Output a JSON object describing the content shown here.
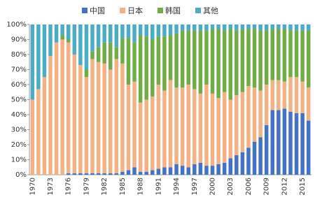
{
  "chart_data": {
    "type": "stacked_bar_percent",
    "categories": [
      "1970",
      null,
      null,
      "1973",
      null,
      null,
      "1976",
      null,
      null,
      "1979",
      null,
      null,
      "1982",
      null,
      null,
      "1985",
      null,
      null,
      "1988",
      null,
      null,
      "1991",
      null,
      null,
      "1994",
      null,
      null,
      "1997",
      null,
      null,
      "2000",
      null,
      null,
      "2003",
      null,
      null,
      "2006",
      null,
      null,
      "2009",
      null,
      null,
      "2012",
      null,
      null,
      "2015",
      null
    ],
    "series": [
      {
        "name": "中国",
        "color": "#4472c4",
        "values": [
          0,
          0,
          0,
          0,
          0,
          0,
          1,
          1,
          1,
          1,
          1,
          1,
          1,
          1,
          1,
          2,
          3,
          5,
          2,
          2,
          3,
          4,
          5,
          5,
          7,
          6,
          5,
          7,
          8,
          6,
          6,
          7,
          8,
          11,
          13,
          15,
          18,
          22,
          25,
          33,
          43,
          43,
          44,
          42,
          41,
          41,
          36
        ]
      },
      {
        "name": "日本",
        "color": "#f4b183",
        "values": [
          50,
          57,
          65,
          79,
          88,
          90,
          87,
          79,
          72,
          64,
          76,
          74,
          73,
          69,
          76,
          72,
          57,
          57,
          46,
          48,
          49,
          56,
          51,
          58,
          51,
          52,
          55,
          50,
          46,
          54,
          48,
          44,
          47,
          39,
          40,
          40,
          41,
          36,
          31,
          27,
          20,
          20,
          18,
          23,
          24,
          21,
          22
        ]
      },
      {
        "name": "韩国",
        "color": "#70ad47",
        "values": [
          0,
          0,
          0,
          0,
          0,
          3,
          2,
          0,
          0,
          5,
          5,
          10,
          14,
          18,
          8,
          17,
          31,
          26,
          45,
          42,
          38,
          32,
          36,
          30,
          36,
          38,
          36,
          39,
          42,
          36,
          43,
          46,
          41,
          47,
          43,
          42,
          38,
          39,
          40,
          36,
          34,
          34,
          35,
          31,
          31,
          34,
          38
        ]
      },
      {
        "name": "其他",
        "color": "#4bacc6",
        "values": [
          50,
          43,
          35,
          21,
          12,
          7,
          10,
          20,
          27,
          30,
          18,
          15,
          12,
          12,
          15,
          9,
          9,
          12,
          7,
          8,
          10,
          8,
          8,
          7,
          6,
          4,
          4,
          4,
          4,
          4,
          3,
          3,
          4,
          3,
          4,
          3,
          3,
          3,
          4,
          4,
          3,
          3,
          3,
          4,
          4,
          4,
          4
        ]
      }
    ],
    "ylim": [
      0,
      100
    ],
    "yticks": [
      {
        "value": 0,
        "label": "0%"
      },
      {
        "value": 10,
        "label": "10%"
      },
      {
        "value": 20,
        "label": "20%"
      },
      {
        "value": 30,
        "label": "30%"
      },
      {
        "value": 40,
        "label": "40%"
      },
      {
        "value": 50,
        "label": "50%"
      },
      {
        "value": 60,
        "label": "60%"
      },
      {
        "value": 70,
        "label": "70%"
      },
      {
        "value": 80,
        "label": "80%"
      },
      {
        "value": 90,
        "label": "90%"
      },
      {
        "value": 100,
        "label": "100%"
      }
    ],
    "legend": "top"
  }
}
